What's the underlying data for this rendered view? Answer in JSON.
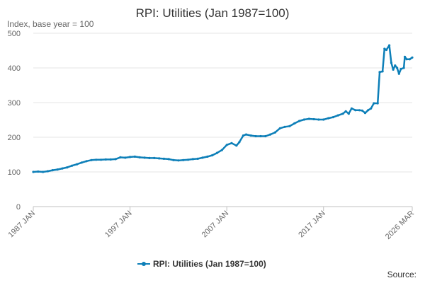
{
  "chart_data": {
    "type": "line",
    "title": "RPI: Utilities (Jan 1987=100)",
    "ylabel": "Index, base year = 100",
    "ylim": [
      0,
      500
    ],
    "yticks": [
      0,
      100,
      200,
      300,
      400,
      500
    ],
    "xlim": [
      1987.0,
      2026.17
    ],
    "xticks": [
      {
        "value": 1987.0,
        "label": "1987 JAN"
      },
      {
        "value": 1997.0,
        "label": "1997 JAN"
      },
      {
        "value": 2007.0,
        "label": "2007 JAN"
      },
      {
        "value": 2017.0,
        "label": "2017 JAN"
      },
      {
        "value": 2026.17,
        "label": "2026 MAR"
      }
    ],
    "legend_position": "bottom",
    "grid": "horizontal",
    "series": [
      {
        "name": "RPI: Utilities (Jan 1987=100)",
        "color": "#0d7fb8",
        "points": [
          [
            1987.0,
            100
          ],
          [
            1987.5,
            101
          ],
          [
            1988.0,
            100
          ],
          [
            1988.5,
            102
          ],
          [
            1989.0,
            105
          ],
          [
            1989.5,
            107
          ],
          [
            1990.0,
            110
          ],
          [
            1990.5,
            113
          ],
          [
            1991.0,
            118
          ],
          [
            1991.5,
            122
          ],
          [
            1992.0,
            127
          ],
          [
            1992.5,
            131
          ],
          [
            1993.0,
            134
          ],
          [
            1993.5,
            135
          ],
          [
            1994.0,
            135
          ],
          [
            1994.5,
            136
          ],
          [
            1995.0,
            136
          ],
          [
            1995.5,
            137
          ],
          [
            1996.0,
            142
          ],
          [
            1996.5,
            141
          ],
          [
            1997.0,
            143
          ],
          [
            1997.5,
            144
          ],
          [
            1998.0,
            142
          ],
          [
            1998.5,
            141
          ],
          [
            1999.0,
            140
          ],
          [
            1999.5,
            140
          ],
          [
            2000.0,
            139
          ],
          [
            2000.5,
            138
          ],
          [
            2001.0,
            137
          ],
          [
            2001.5,
            134
          ],
          [
            2002.0,
            133
          ],
          [
            2002.5,
            134
          ],
          [
            2003.0,
            135
          ],
          [
            2003.5,
            137
          ],
          [
            2004.0,
            138
          ],
          [
            2004.5,
            141
          ],
          [
            2005.0,
            144
          ],
          [
            2005.5,
            148
          ],
          [
            2006.0,
            155
          ],
          [
            2006.5,
            163
          ],
          [
            2007.0,
            178
          ],
          [
            2007.5,
            183
          ],
          [
            2008.0,
            176
          ],
          [
            2008.3,
            186
          ],
          [
            2008.7,
            205
          ],
          [
            2009.0,
            208
          ],
          [
            2009.5,
            205
          ],
          [
            2010.0,
            203
          ],
          [
            2010.5,
            203
          ],
          [
            2011.0,
            203
          ],
          [
            2011.5,
            208
          ],
          [
            2012.0,
            214
          ],
          [
            2012.5,
            226
          ],
          [
            2013.0,
            230
          ],
          [
            2013.5,
            232
          ],
          [
            2014.0,
            240
          ],
          [
            2014.5,
            247
          ],
          [
            2015.0,
            251
          ],
          [
            2015.5,
            253
          ],
          [
            2016.0,
            252
          ],
          [
            2016.5,
            251
          ],
          [
            2017.0,
            251
          ],
          [
            2017.5,
            255
          ],
          [
            2018.0,
            258
          ],
          [
            2018.5,
            263
          ],
          [
            2019.0,
            268
          ],
          [
            2019.3,
            275
          ],
          [
            2019.6,
            268
          ],
          [
            2019.9,
            283
          ],
          [
            2020.3,
            278
          ],
          [
            2020.7,
            278
          ],
          [
            2021.0,
            277
          ],
          [
            2021.3,
            270
          ],
          [
            2021.6,
            278
          ],
          [
            2021.9,
            283
          ],
          [
            2022.2,
            298
          ],
          [
            2022.6,
            298
          ],
          [
            2022.8,
            388
          ],
          [
            2023.1,
            390
          ],
          [
            2023.3,
            455
          ],
          [
            2023.5,
            452
          ],
          [
            2023.8,
            465
          ],
          [
            2024.0,
            415
          ],
          [
            2024.2,
            395
          ],
          [
            2024.4,
            407
          ],
          [
            2024.6,
            400
          ],
          [
            2024.8,
            383
          ],
          [
            2025.0,
            397
          ],
          [
            2025.3,
            400
          ],
          [
            2025.4,
            432
          ],
          [
            2025.6,
            425
          ],
          [
            2025.9,
            425
          ],
          [
            2026.17,
            430
          ]
        ]
      }
    ]
  },
  "source": "Source:"
}
